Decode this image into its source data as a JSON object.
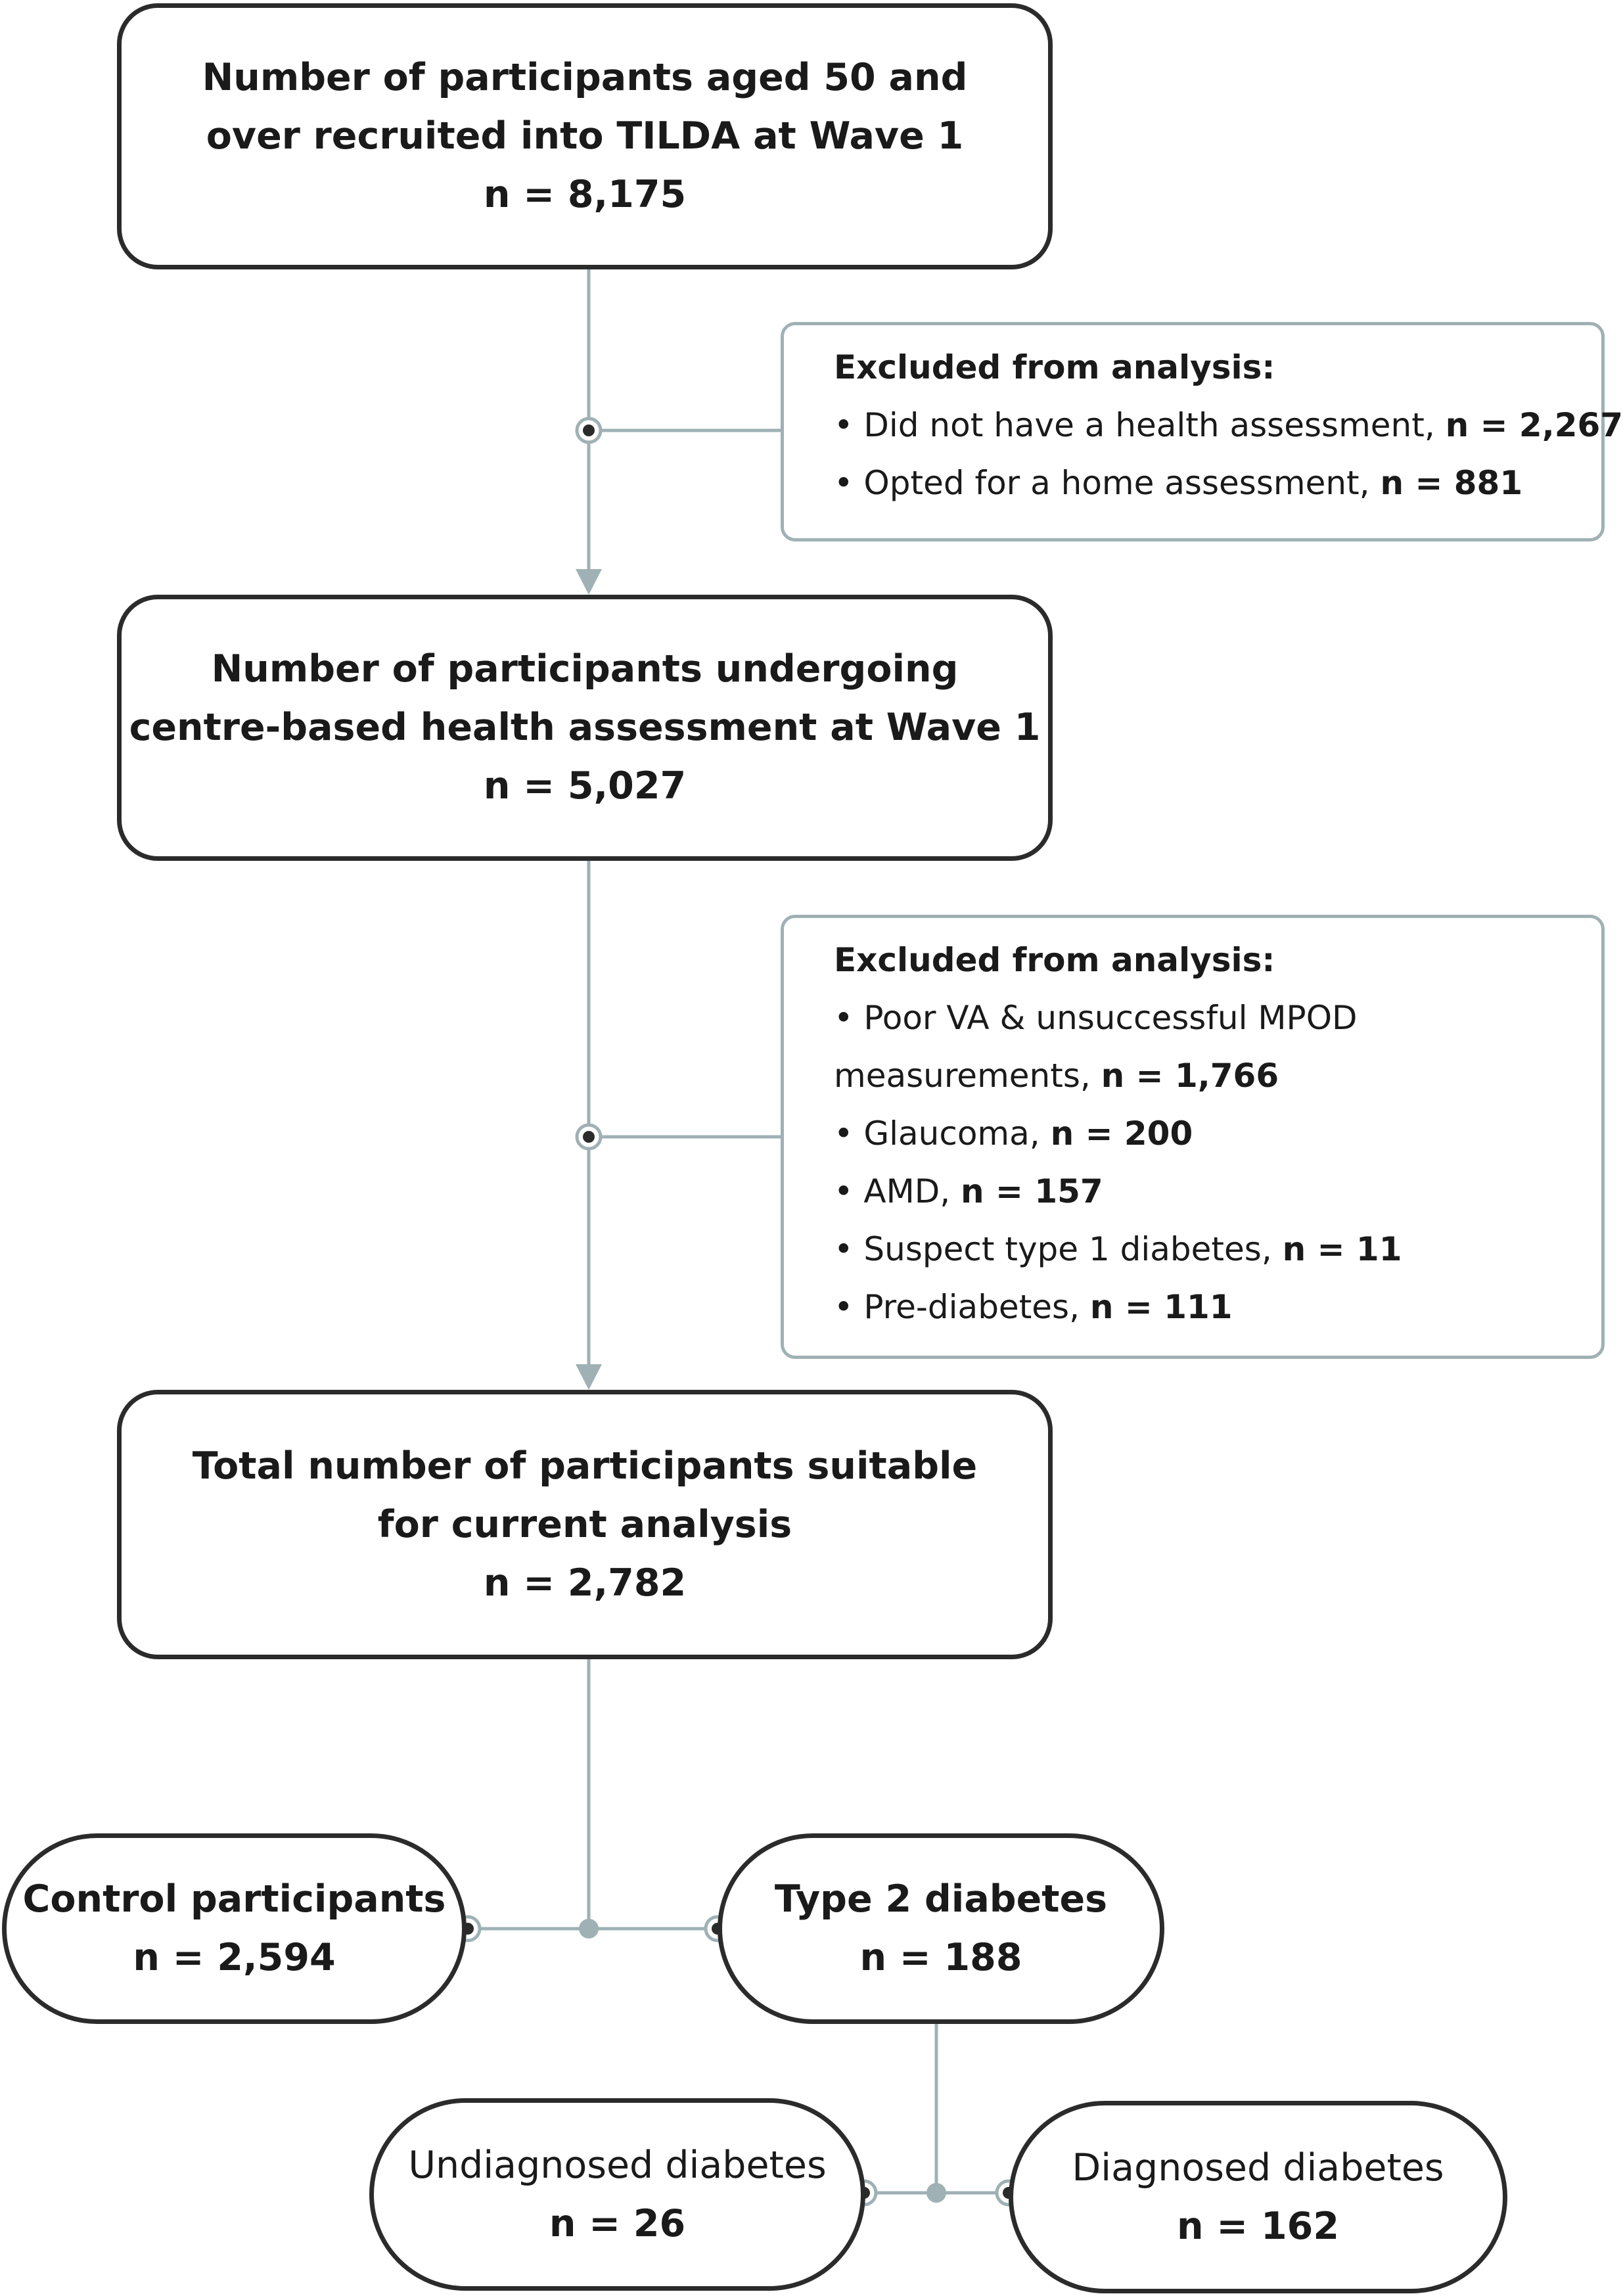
{
  "boxes": {
    "recruited": {
      "line1": "Number of participants aged 50 and",
      "line2": "over recruited into TILDA at Wave 1",
      "count": "n = 8,175"
    },
    "assessed": {
      "line1": "Number of participants undergoing",
      "line2": "centre-based health assessment at Wave 1",
      "count": "n = 5,027"
    },
    "suitable": {
      "line1": "Total number of participants suitable",
      "line2": "for current analysis",
      "count": "n = 2,782"
    },
    "control": {
      "label": "Control participants",
      "count": "n = 2,594"
    },
    "type2": {
      "label": "Type 2 diabetes",
      "count": "n = 188"
    },
    "undiagnosed": {
      "label": "Undiagnosed diabetes",
      "count": "n = 26"
    },
    "diagnosed": {
      "label": "Diagnosed diabetes",
      "count": "n = 162"
    }
  },
  "exclusions1": {
    "header": "Excluded from analysis:",
    "items": [
      {
        "text": "• Did not have a health assessment, ",
        "count": "n = 2,267"
      },
      {
        "text": "• Opted for a home assessment, ",
        "count": "n = 881"
      }
    ]
  },
  "exclusions2": {
    "header": "Excluded from analysis:",
    "items": [
      {
        "text": "• Poor VA & unsuccessful MPOD",
        "count": ""
      },
      {
        "text": "measurements, ",
        "count": "n = 1,766"
      },
      {
        "text": "• Glaucoma, ",
        "count": "n = 200"
      },
      {
        "text": "• AMD, ",
        "count": "n = 157"
      },
      {
        "text": "• Suspect type 1 diabetes, ",
        "count": "n = 11"
      },
      {
        "text": "• Pre-diabetes, ",
        "count": "n = 111"
      }
    ]
  },
  "colors": {
    "connector": "#9fb1b4",
    "border": "#2b2b2b",
    "dot": "#2b2b2b"
  }
}
